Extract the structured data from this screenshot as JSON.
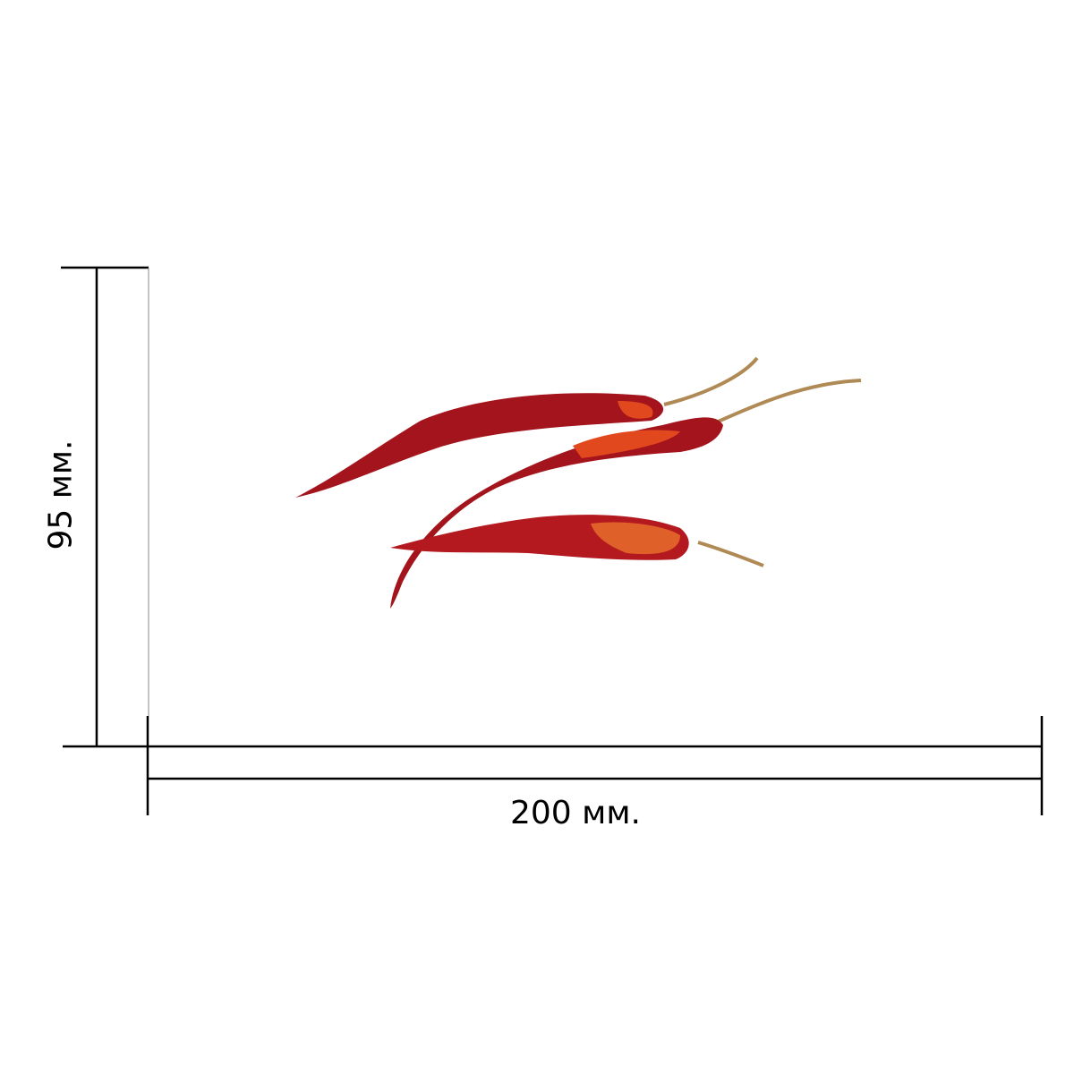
{
  "dimensions": {
    "width_label": "200 мм.",
    "height_label": "95 мм."
  },
  "product": {
    "image": "dried-red-chili-peppers",
    "count": 3,
    "colors": {
      "pepper": "#a3141c",
      "pepper_highlight": "#e2481e",
      "stem": "#b08a55"
    }
  }
}
